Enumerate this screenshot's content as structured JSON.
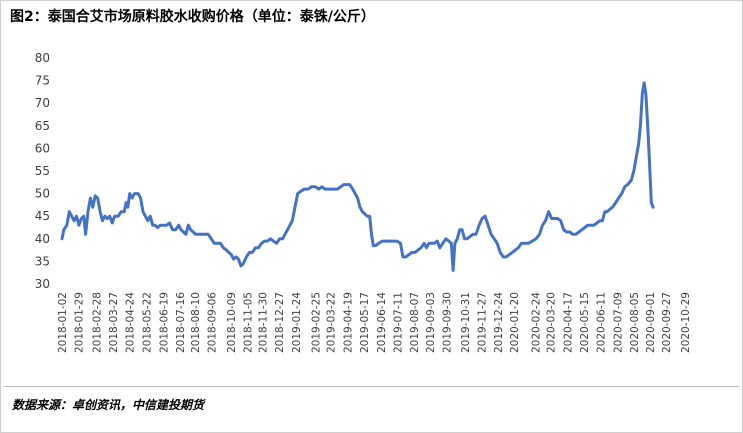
{
  "title": "图2：泰国合艾市场原料胶水收购价格（单位：泰铢/公斤）",
  "source": "数据来源：卓创资讯，中信建投期货",
  "colors": {
    "line": "#4472C4",
    "frame": "#cfcfcf",
    "tick": "#404040"
  },
  "chart_data": {
    "type": "line",
    "title": "图2：泰国合艾市场原料胶水收购价格（单位：泰铢/公斤）",
    "xlabel": "",
    "ylabel": "",
    "ylim": [
      30,
      80
    ],
    "yticks": [
      30,
      35,
      40,
      45,
      50,
      55,
      60,
      65,
      70,
      75,
      80
    ],
    "grid": false,
    "legend": "none",
    "x_start": "2018-01-02",
    "x_end": "2020-11-06",
    "xticks": [
      "2018-01-02",
      "2018-01-29",
      "2018-02-28",
      "2018-03-27",
      "2018-04-24",
      "2018-05-22",
      "2018-06-19",
      "2018-07-16",
      "2018-08-10",
      "2018-09-06",
      "2018-10-09",
      "2018-11-05",
      "2018-11-30",
      "2018-12-27",
      "2019-01-24",
      "2019-02-25",
      "2019-03-22",
      "2019-04-19",
      "2019-05-17",
      "2019-06-14",
      "2019-07-11",
      "2019-08-07",
      "2019-09-03",
      "2019-09-30",
      "2019-10-31",
      "2019-11-27",
      "2019-12-24",
      "2020-01-20",
      "2020-02-24",
      "2020-03-20",
      "2020-04-17",
      "2020-05-15",
      "2020-06-11",
      "2020-07-09",
      "2020-08-05",
      "2020-09-01",
      "2020-09-27",
      "2020-10-29"
    ],
    "series": [
      {
        "color": "#4472C4",
        "points": [
          [
            "2018-01-02",
            40
          ],
          [
            "2018-01-05",
            42
          ],
          [
            "2018-01-10",
            43
          ],
          [
            "2018-01-14",
            46
          ],
          [
            "2018-01-18",
            45
          ],
          [
            "2018-01-22",
            44
          ],
          [
            "2018-01-26",
            45
          ],
          [
            "2018-01-30",
            43
          ],
          [
            "2018-02-03",
            44.5
          ],
          [
            "2018-02-07",
            45
          ],
          [
            "2018-02-10",
            41
          ],
          [
            "2018-02-14",
            46
          ],
          [
            "2018-02-18",
            49
          ],
          [
            "2018-02-22",
            47
          ],
          [
            "2018-02-26",
            49.5
          ],
          [
            "2018-03-02",
            49
          ],
          [
            "2018-03-06",
            46
          ],
          [
            "2018-03-10",
            44
          ],
          [
            "2018-03-14",
            45
          ],
          [
            "2018-03-18",
            44.5
          ],
          [
            "2018-03-22",
            45
          ],
          [
            "2018-03-26",
            43.5
          ],
          [
            "2018-03-30",
            45
          ],
          [
            "2018-04-05",
            45
          ],
          [
            "2018-04-10",
            46
          ],
          [
            "2018-04-15",
            46
          ],
          [
            "2018-04-18",
            48
          ],
          [
            "2018-04-21",
            47
          ],
          [
            "2018-04-24",
            50
          ],
          [
            "2018-04-28",
            49
          ],
          [
            "2018-05-02",
            50
          ],
          [
            "2018-05-08",
            50
          ],
          [
            "2018-05-12",
            49
          ],
          [
            "2018-05-16",
            46
          ],
          [
            "2018-05-20",
            45
          ],
          [
            "2018-05-24",
            44
          ],
          [
            "2018-05-28",
            45
          ],
          [
            "2018-06-01",
            43
          ],
          [
            "2018-06-05",
            43
          ],
          [
            "2018-06-09",
            42.5
          ],
          [
            "2018-06-14",
            43
          ],
          [
            "2018-06-19",
            43
          ],
          [
            "2018-06-24",
            43
          ],
          [
            "2018-06-29",
            43.5
          ],
          [
            "2018-07-04",
            42
          ],
          [
            "2018-07-09",
            42
          ],
          [
            "2018-07-14",
            43
          ],
          [
            "2018-07-18",
            42
          ],
          [
            "2018-07-22",
            41.5
          ],
          [
            "2018-07-26",
            41
          ],
          [
            "2018-07-30",
            43
          ],
          [
            "2018-08-03",
            42
          ],
          [
            "2018-08-07",
            41.5
          ],
          [
            "2018-08-11",
            41
          ],
          [
            "2018-08-16",
            41
          ],
          [
            "2018-08-21",
            41
          ],
          [
            "2018-08-27",
            41
          ],
          [
            "2018-09-01",
            41
          ],
          [
            "2018-09-06",
            40
          ],
          [
            "2018-09-11",
            39
          ],
          [
            "2018-09-16",
            39
          ],
          [
            "2018-09-21",
            39
          ],
          [
            "2018-09-26",
            38
          ],
          [
            "2018-10-01",
            37.5
          ],
          [
            "2018-10-05",
            37
          ],
          [
            "2018-10-09",
            36.5
          ],
          [
            "2018-10-13",
            35.5
          ],
          [
            "2018-10-17",
            36
          ],
          [
            "2018-10-21",
            35.5
          ],
          [
            "2018-10-25",
            34
          ],
          [
            "2018-10-29",
            34.5
          ],
          [
            "2018-11-03",
            36
          ],
          [
            "2018-11-08",
            37
          ],
          [
            "2018-11-13",
            37
          ],
          [
            "2018-11-18",
            38
          ],
          [
            "2018-11-23",
            38
          ],
          [
            "2018-11-28",
            39
          ],
          [
            "2018-12-03",
            39.5
          ],
          [
            "2018-12-08",
            39.5
          ],
          [
            "2018-12-13",
            40
          ],
          [
            "2018-12-18",
            39.5
          ],
          [
            "2018-12-23",
            39
          ],
          [
            "2018-12-28",
            40
          ],
          [
            "2019-01-02",
            40
          ],
          [
            "2019-01-06",
            41
          ],
          [
            "2019-01-10",
            42
          ],
          [
            "2019-01-14",
            43
          ],
          [
            "2019-01-18",
            44
          ],
          [
            "2019-01-21",
            46
          ],
          [
            "2019-01-24",
            48
          ],
          [
            "2019-01-27",
            50
          ],
          [
            "2019-02-01",
            50.5
          ],
          [
            "2019-02-07",
            51
          ],
          [
            "2019-02-13",
            51
          ],
          [
            "2019-02-19",
            51.5
          ],
          [
            "2019-02-25",
            51.5
          ],
          [
            "2019-03-03",
            51
          ],
          [
            "2019-03-08",
            51.5
          ],
          [
            "2019-03-13",
            51
          ],
          [
            "2019-03-18",
            51
          ],
          [
            "2019-03-23",
            51
          ],
          [
            "2019-03-28",
            51
          ],
          [
            "2019-04-03",
            51
          ],
          [
            "2019-04-08",
            51.5
          ],
          [
            "2019-04-13",
            52
          ],
          [
            "2019-04-18",
            52
          ],
          [
            "2019-04-23",
            52
          ],
          [
            "2019-04-28",
            51
          ],
          [
            "2019-05-02",
            50
          ],
          [
            "2019-05-06",
            49
          ],
          [
            "2019-05-10",
            47
          ],
          [
            "2019-05-14",
            46
          ],
          [
            "2019-05-18",
            45.5
          ],
          [
            "2019-05-22",
            45
          ],
          [
            "2019-05-26",
            45
          ],
          [
            "2019-05-29",
            41
          ],
          [
            "2019-06-01",
            38.5
          ],
          [
            "2019-06-05",
            38.5
          ],
          [
            "2019-06-10",
            39
          ],
          [
            "2019-06-16",
            39.5
          ],
          [
            "2019-06-22",
            39.5
          ],
          [
            "2019-06-28",
            39.5
          ],
          [
            "2019-07-04",
            39.5
          ],
          [
            "2019-07-10",
            39.5
          ],
          [
            "2019-07-16",
            39
          ],
          [
            "2019-07-20",
            36
          ],
          [
            "2019-07-25",
            36
          ],
          [
            "2019-07-30",
            36.5
          ],
          [
            "2019-08-04",
            37
          ],
          [
            "2019-08-09",
            37
          ],
          [
            "2019-08-14",
            37.5
          ],
          [
            "2019-08-19",
            38
          ],
          [
            "2019-08-24",
            39
          ],
          [
            "2019-08-28",
            38
          ],
          [
            "2019-09-01",
            39
          ],
          [
            "2019-09-05",
            39
          ],
          [
            "2019-09-10",
            39
          ],
          [
            "2019-09-15",
            39.5
          ],
          [
            "2019-09-19",
            38
          ],
          [
            "2019-09-24",
            39
          ],
          [
            "2019-09-29",
            40
          ],
          [
            "2019-10-04",
            39.5
          ],
          [
            "2019-10-08",
            39
          ],
          [
            "2019-10-11",
            33
          ],
          [
            "2019-10-14",
            39
          ],
          [
            "2019-10-18",
            40
          ],
          [
            "2019-10-22",
            42
          ],
          [
            "2019-10-26",
            42
          ],
          [
            "2019-10-30",
            40
          ],
          [
            "2019-11-03",
            40
          ],
          [
            "2019-11-08",
            40.5
          ],
          [
            "2019-11-13",
            41
          ],
          [
            "2019-11-18",
            41
          ],
          [
            "2019-11-23",
            43
          ],
          [
            "2019-11-28",
            44.5
          ],
          [
            "2019-12-03",
            45
          ],
          [
            "2019-12-08",
            43
          ],
          [
            "2019-12-13",
            41
          ],
          [
            "2019-12-18",
            40
          ],
          [
            "2019-12-23",
            39
          ],
          [
            "2019-12-28",
            37
          ],
          [
            "2020-01-02",
            36
          ],
          [
            "2020-01-07",
            36
          ],
          [
            "2020-01-12",
            36.5
          ],
          [
            "2020-01-17",
            37
          ],
          [
            "2020-01-22",
            37.5
          ],
          [
            "2020-01-27",
            38
          ],
          [
            "2020-02-01",
            39
          ],
          [
            "2020-02-07",
            39
          ],
          [
            "2020-02-13",
            39
          ],
          [
            "2020-02-19",
            39.5
          ],
          [
            "2020-02-25",
            40
          ],
          [
            "2020-03-02",
            41
          ],
          [
            "2020-03-07",
            43
          ],
          [
            "2020-03-12",
            44
          ],
          [
            "2020-03-17",
            46
          ],
          [
            "2020-03-22",
            44.5
          ],
          [
            "2020-03-27",
            44.5
          ],
          [
            "2020-04-01",
            44.5
          ],
          [
            "2020-04-06",
            44
          ],
          [
            "2020-04-11",
            42
          ],
          [
            "2020-04-16",
            41.5
          ],
          [
            "2020-04-21",
            41.5
          ],
          [
            "2020-04-26",
            41
          ],
          [
            "2020-05-01",
            41
          ],
          [
            "2020-05-06",
            41.5
          ],
          [
            "2020-05-11",
            42
          ],
          [
            "2020-05-16",
            42.5
          ],
          [
            "2020-05-21",
            43
          ],
          [
            "2020-05-26",
            43
          ],
          [
            "2020-05-31",
            43
          ],
          [
            "2020-06-05",
            43.5
          ],
          [
            "2020-06-10",
            44
          ],
          [
            "2020-06-14",
            44
          ],
          [
            "2020-06-18",
            46
          ],
          [
            "2020-06-22",
            46
          ],
          [
            "2020-06-26",
            46.5
          ],
          [
            "2020-07-01",
            47
          ],
          [
            "2020-07-06",
            48
          ],
          [
            "2020-07-11",
            49
          ],
          [
            "2020-07-16",
            50
          ],
          [
            "2020-07-21",
            51.5
          ],
          [
            "2020-07-26",
            52
          ],
          [
            "2020-08-01",
            53
          ],
          [
            "2020-08-05",
            55
          ],
          [
            "2020-08-09",
            58
          ],
          [
            "2020-08-13",
            61
          ],
          [
            "2020-08-16",
            65
          ],
          [
            "2020-08-19",
            72
          ],
          [
            "2020-08-22",
            74.5
          ],
          [
            "2020-08-25",
            72
          ],
          [
            "2020-08-28",
            65
          ],
          [
            "2020-08-31",
            57
          ],
          [
            "2020-09-03",
            48
          ],
          [
            "2020-09-06",
            47
          ]
        ]
      }
    ]
  }
}
